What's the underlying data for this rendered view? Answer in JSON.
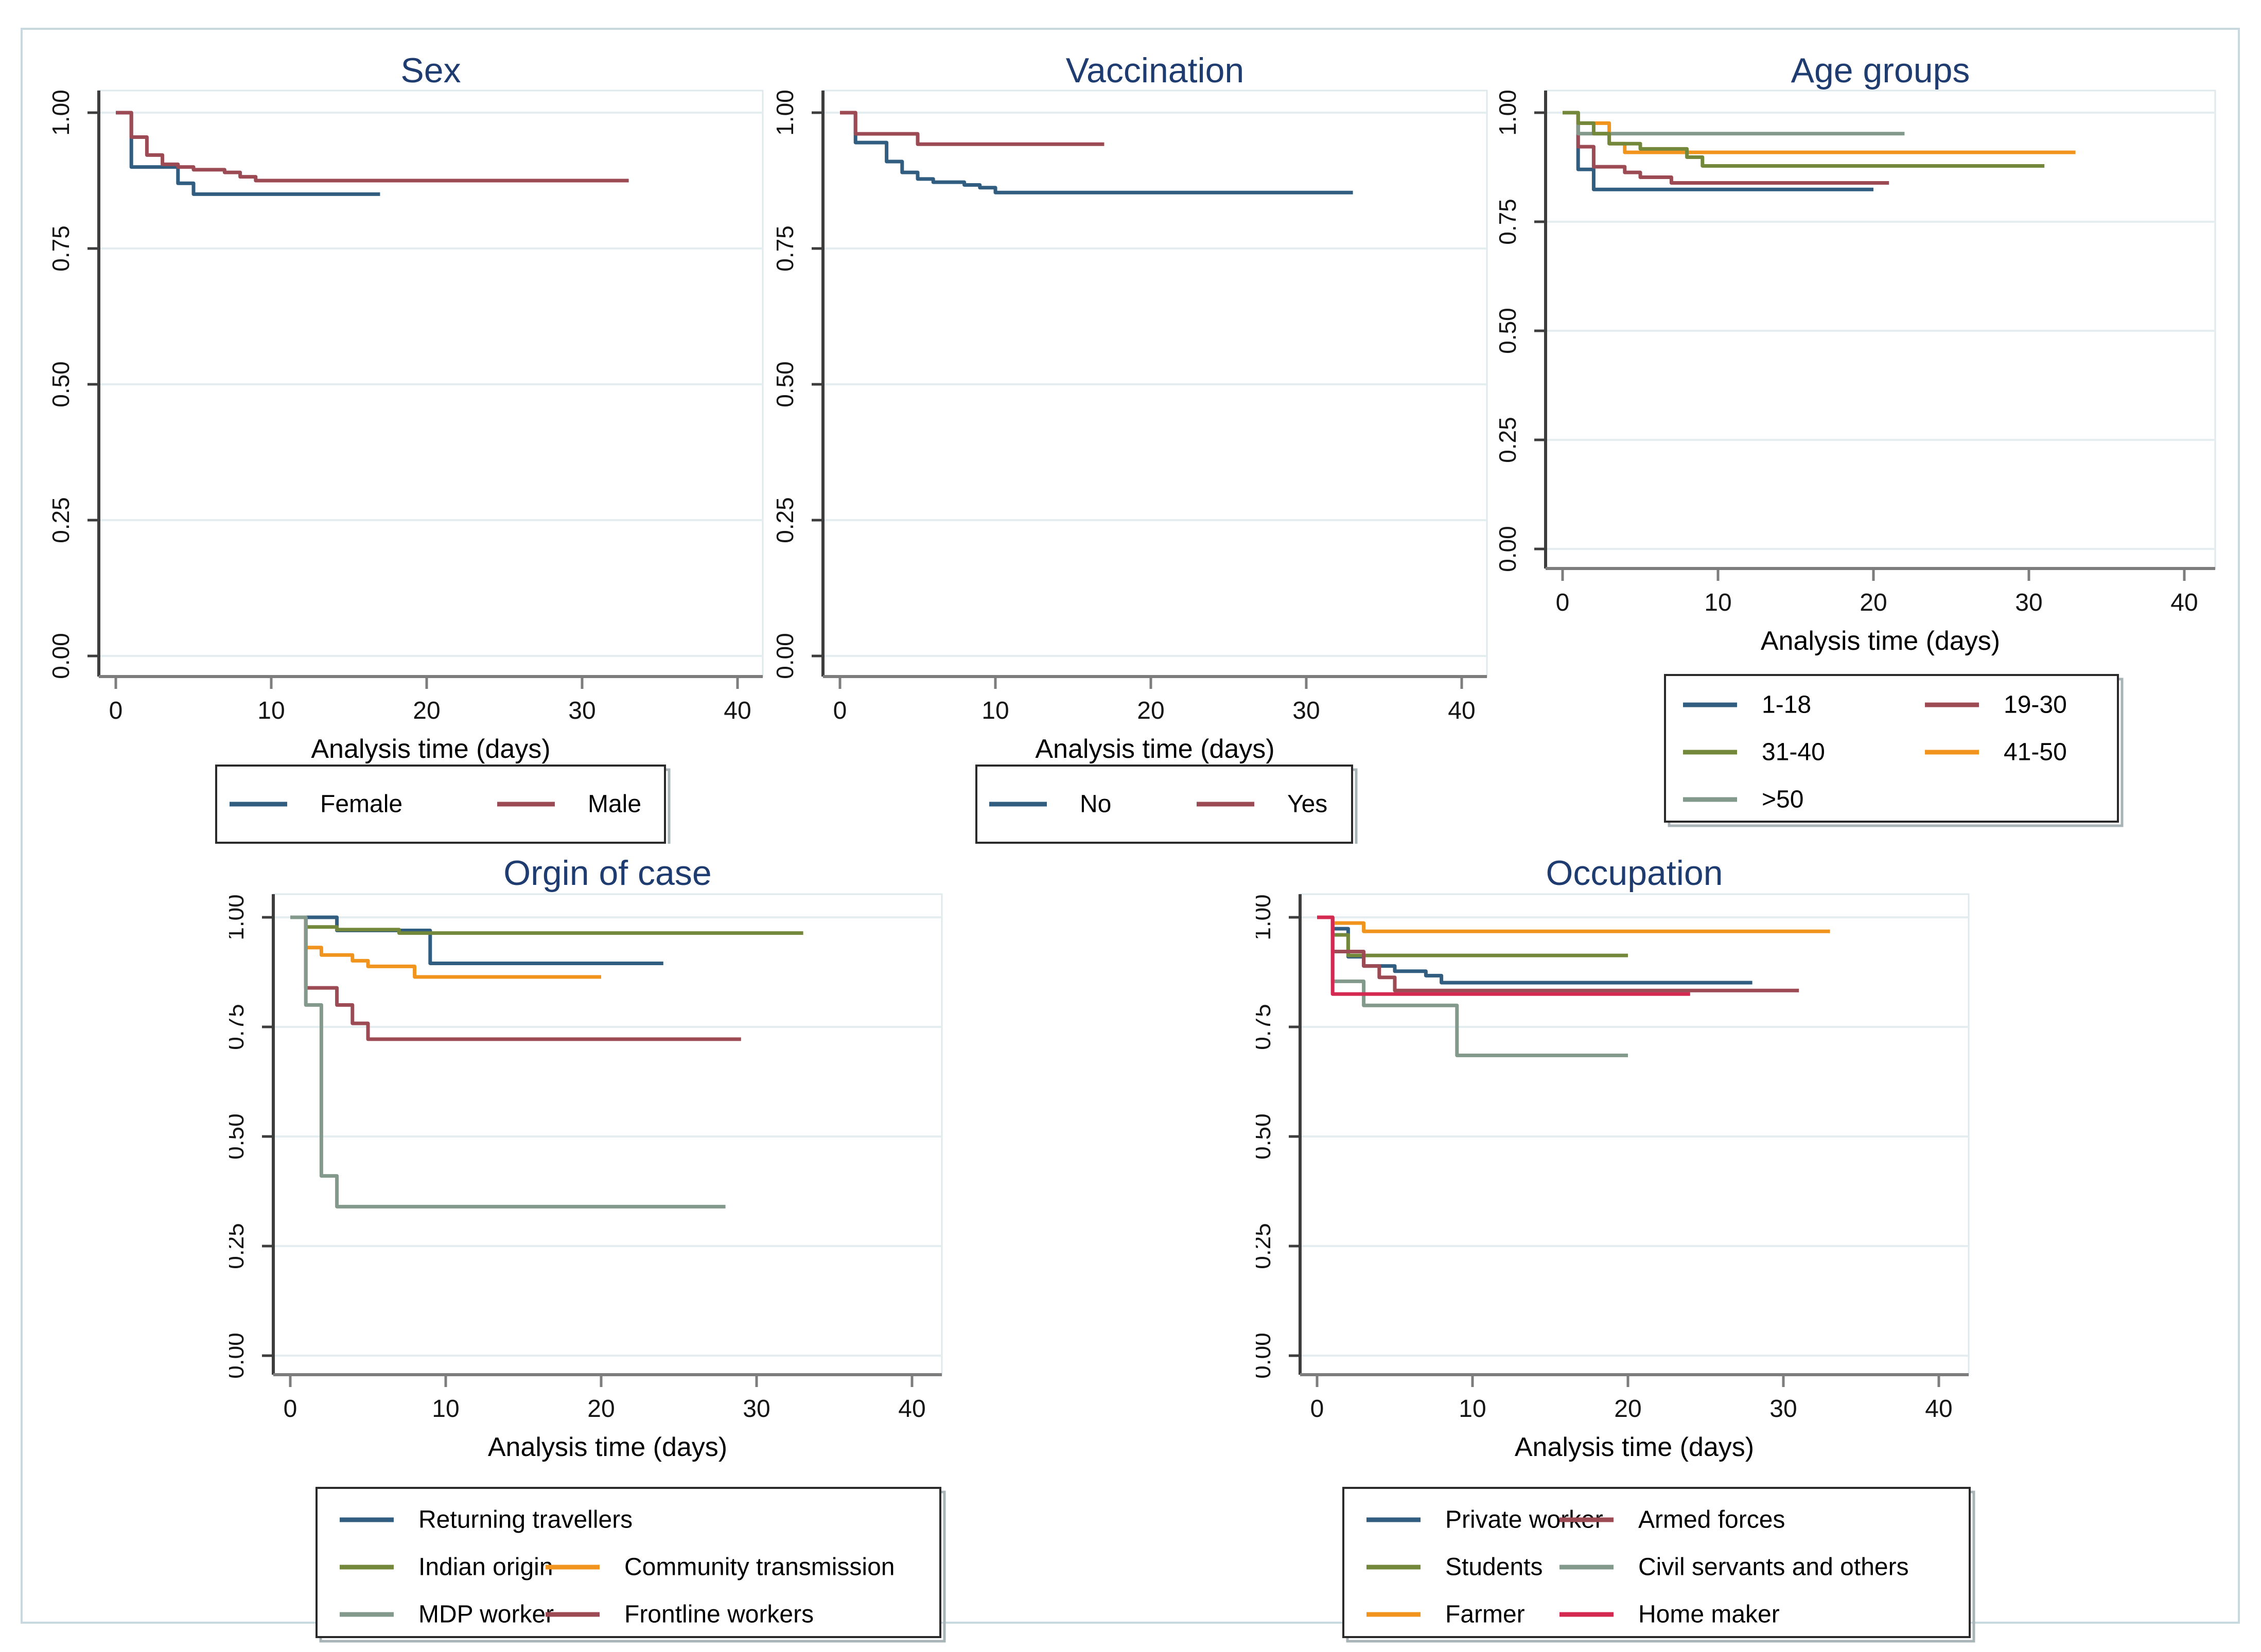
{
  "figure": {
    "background": "#ffffff",
    "border_color": "#c7d8de"
  },
  "palette": {
    "navy": "#315d80",
    "maroon": "#9c4a54",
    "forest": "#74883c",
    "orange": "#f0941e",
    "teal": "#82998b",
    "cranberry": "#d42a52"
  },
  "style_colors": {
    "title_text": "#1f3c70",
    "tick_text": "#141414",
    "axis_label_text": "#000000",
    "legend_text": "#000000",
    "gridline": "#e4eef1",
    "plot_border": "#dfe9ec",
    "y_axis": "#3d3d3d",
    "x_axis": "#7d7d7d",
    "legend_border": "#2a2a2a",
    "legend_shadow": "#a9b4b8"
  },
  "chart_data": [
    {
      "type": "line",
      "km_step": true,
      "title": "Sex",
      "xlabel": "Analysis time (days)",
      "xlim": [
        0,
        40
      ],
      "ylim": [
        0.0,
        1.0
      ],
      "x_ticks": [
        "0",
        "10",
        "20",
        "30",
        "40"
      ],
      "y_ticks": [
        "0.00",
        "0.25",
        "0.50",
        "0.75",
        "1.00"
      ],
      "grid": true,
      "legend_position": "below",
      "series": [
        {
          "label": "Female",
          "color": "navy",
          "start": 1.0,
          "steps": [
            [
              1,
              0.9
            ],
            [
              4,
              0.87
            ],
            [
              5,
              0.85
            ]
          ],
          "end_day": 17
        },
        {
          "label": "Male",
          "color": "maroon",
          "start": 1.0,
          "steps": [
            [
              1,
              0.955
            ],
            [
              2,
              0.922
            ],
            [
              3,
              0.905
            ],
            [
              4,
              0.9
            ],
            [
              5,
              0.895
            ],
            [
              7,
              0.89
            ],
            [
              8,
              0.882
            ],
            [
              9,
              0.875
            ]
          ],
          "end_day": 33
        }
      ],
      "legend_rows": [
        [
          "Female",
          "Male"
        ]
      ]
    },
    {
      "type": "line",
      "km_step": true,
      "title": "Vaccination",
      "xlabel": "Analysis time (days)",
      "xlim": [
        0,
        40
      ],
      "ylim": [
        0.0,
        1.0
      ],
      "x_ticks": [
        "0",
        "10",
        "20",
        "30",
        "40"
      ],
      "y_ticks": [
        "0.00",
        "0.25",
        "0.50",
        "0.75",
        "1.00"
      ],
      "grid": true,
      "legend_position": "below",
      "series": [
        {
          "label": "No",
          "color": "navy",
          "start": 1.0,
          "steps": [
            [
              1,
              0.945
            ],
            [
              3,
              0.91
            ],
            [
              4,
              0.89
            ],
            [
              5,
              0.878
            ],
            [
              6,
              0.872
            ],
            [
              8,
              0.867
            ],
            [
              9,
              0.862
            ],
            [
              10,
              0.853
            ]
          ],
          "end_day": 33
        },
        {
          "label": "Yes",
          "color": "maroon",
          "start": 1.0,
          "steps": [
            [
              1,
              0.961
            ],
            [
              5,
              0.942
            ]
          ],
          "end_day": 17
        }
      ],
      "legend_rows": [
        [
          "No",
          "Yes"
        ]
      ]
    },
    {
      "type": "line",
      "km_step": true,
      "title": "Age groups",
      "xlabel": "Analysis time (days)",
      "xlim": [
        0,
        40
      ],
      "ylim": [
        0.0,
        1.0
      ],
      "x_ticks": [
        "0",
        "10",
        "20",
        "30",
        "40"
      ],
      "y_ticks": [
        "0.00",
        "0.25",
        "0.50",
        "0.75",
        "1.00"
      ],
      "grid": true,
      "legend_position": "below",
      "series": [
        {
          "label": "1-18",
          "color": "navy",
          "start": 1.0,
          "steps": [
            [
              1,
              0.87
            ],
            [
              2,
              0.824
            ]
          ],
          "end_day": 20
        },
        {
          "label": "19-30",
          "color": "maroon",
          "start": 1.0,
          "steps": [
            [
              1,
              0.922
            ],
            [
              2,
              0.876
            ],
            [
              4,
              0.863
            ],
            [
              5,
              0.852
            ],
            [
              7,
              0.839
            ]
          ],
          "end_day": 21
        },
        {
          "label": ">50",
          "color": "teal",
          "start": 1.0,
          "steps": [
            [
              1,
              0.952
            ]
          ],
          "end_day": 22
        },
        {
          "label": "41-50",
          "color": "orange",
          "start": 1.0,
          "steps": [
            [
              1,
              0.976
            ],
            [
              3,
              0.929
            ],
            [
              4,
              0.909
            ]
          ],
          "end_day": 33
        },
        {
          "label": "31-40",
          "color": "forest",
          "start": 1.0,
          "steps": [
            [
              1,
              0.976
            ],
            [
              2,
              0.952
            ],
            [
              3,
              0.929
            ],
            [
              5,
              0.917
            ],
            [
              8,
              0.898
            ],
            [
              9,
              0.878
            ]
          ],
          "end_day": 31
        }
      ],
      "legend_rows": [
        [
          "1-18",
          "19-30"
        ],
        [
          "31-40",
          "41-50"
        ],
        [
          ">50"
        ]
      ]
    },
    {
      "type": "line",
      "km_step": true,
      "title": "Orgin of case",
      "xlabel": "Analysis time (days)",
      "xlim": [
        0,
        40
      ],
      "ylim": [
        0.0,
        1.0
      ],
      "x_ticks": [
        "0",
        "10",
        "20",
        "30",
        "40"
      ],
      "y_ticks": [
        "0.00",
        "0.25",
        "0.50",
        "0.75",
        "1.00"
      ],
      "grid": true,
      "legend_position": "below",
      "series": [
        {
          "label": "Returning travellers",
          "color": "navy",
          "start": 1.0,
          "steps": [
            [
              3,
              0.97
            ],
            [
              9,
              0.895
            ]
          ],
          "end_day": 24
        },
        {
          "label": "Indian origin",
          "color": "forest",
          "start": 1.0,
          "steps": [
            [
              1,
              0.978
            ],
            [
              3,
              0.972
            ],
            [
              7,
              0.964
            ]
          ],
          "end_day": 33
        },
        {
          "label": "Community transmission",
          "color": "orange",
          "start": 1.0,
          "steps": [
            [
              1,
              0.931
            ],
            [
              2,
              0.914
            ],
            [
              4,
              0.901
            ],
            [
              5,
              0.888
            ],
            [
              8,
              0.864
            ]
          ],
          "end_day": 20
        },
        {
          "label": "Frontline workers",
          "color": "maroon",
          "start": 1.0,
          "steps": [
            [
              1,
              0.839
            ],
            [
              3,
              0.8
            ],
            [
              4,
              0.758
            ],
            [
              5,
              0.722
            ]
          ],
          "end_day": 29
        },
        {
          "label": "MDP worker",
          "color": "teal",
          "start": 1.0,
          "steps": [
            [
              1,
              0.8
            ],
            [
              2,
              0.41
            ],
            [
              3,
              0.34
            ]
          ],
          "end_day": 28
        }
      ],
      "legend_rows": [
        [
          "Returning travellers"
        ],
        [
          "Indian origin",
          "Community transmission"
        ],
        [
          "MDP worker",
          "Frontline workers"
        ]
      ]
    },
    {
      "type": "line",
      "km_step": true,
      "title": "Occupation",
      "xlabel": "Analysis time (days)",
      "xlim": [
        0,
        40
      ],
      "ylim": [
        0.0,
        1.0
      ],
      "x_ticks": [
        "0",
        "10",
        "20",
        "30",
        "40"
      ],
      "y_ticks": [
        "0.00",
        "0.25",
        "0.50",
        "0.75",
        "1.00"
      ],
      "grid": true,
      "legend_position": "below",
      "series": [
        {
          "label": "Private worker",
          "color": "navy",
          "start": 1.0,
          "steps": [
            [
              1,
              0.974
            ],
            [
              2,
              0.91
            ],
            [
              3,
              0.889
            ],
            [
              5,
              0.877
            ],
            [
              7,
              0.867
            ],
            [
              8,
              0.851
            ]
          ],
          "end_day": 28
        },
        {
          "label": "Students",
          "color": "forest",
          "start": 1.0,
          "steps": [
            [
              1,
              0.96
            ],
            [
              2,
              0.913
            ]
          ],
          "end_day": 20
        },
        {
          "label": "Farmer",
          "color": "orange",
          "start": 1.0,
          "steps": [
            [
              1,
              0.987
            ],
            [
              3,
              0.968
            ]
          ],
          "end_day": 33
        },
        {
          "label": "Armed forces",
          "color": "maroon",
          "start": 1.0,
          "steps": [
            [
              1,
              0.922
            ],
            [
              3,
              0.889
            ],
            [
              4,
              0.863
            ],
            [
              5,
              0.833
            ]
          ],
          "end_day": 31
        },
        {
          "label": "Civil servants and others",
          "color": "teal",
          "start": 1.0,
          "steps": [
            [
              1,
              0.854
            ],
            [
              3,
              0.799
            ],
            [
              9,
              0.685
            ]
          ],
          "end_day": 20
        },
        {
          "label": "Home maker",
          "color": "cranberry",
          "start": 1.0,
          "steps": [
            [
              1,
              0.825
            ]
          ],
          "end_day": 24
        }
      ],
      "legend_rows": [
        [
          "Private worker",
          "Armed forces"
        ],
        [
          "Students",
          "Civil servants and others"
        ],
        [
          "Farmer",
          "Home maker"
        ]
      ]
    }
  ]
}
